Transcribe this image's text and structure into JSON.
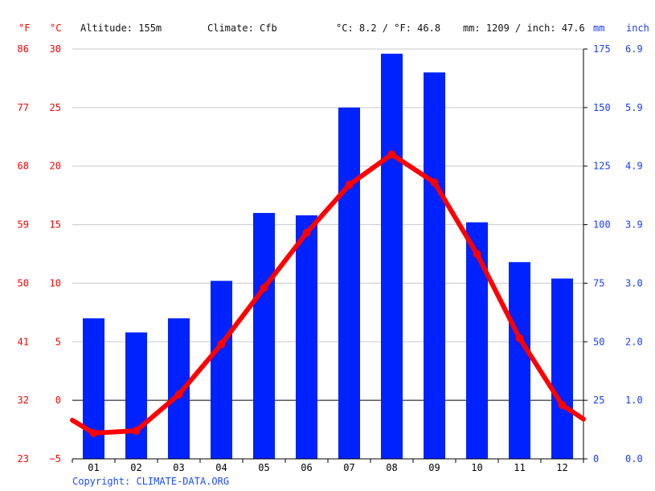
{
  "header": {
    "altitude": "Altitude: 155m",
    "climate": "Climate: Cfb",
    "avg_temp": "°C: 8.2 / °F: 46.8",
    "precip": "mm: 1209 / inch: 47.6",
    "unit_f": "°F",
    "unit_c": "°C",
    "unit_mm": "mm",
    "unit_inch": "inch"
  },
  "copyright": "Copyright: CLIMATE-DATA.ORG",
  "colors": {
    "temperature": "#ff0000",
    "precipitation": "#0022ff",
    "axis_blue": "#1a3cff",
    "grid": "#c8c8c8"
  },
  "chart_data": {
    "type": "bar",
    "categories": [
      "01",
      "02",
      "03",
      "04",
      "05",
      "06",
      "07",
      "08",
      "09",
      "10",
      "11",
      "12"
    ],
    "series": [
      {
        "values": [
          60,
          54,
          60,
          76,
          105,
          104,
          150,
          173,
          165,
          101,
          84,
          77
        ],
        "axis": "right-mm",
        "kind": "bar"
      },
      {
        "values": [
          -2.8,
          -2.6,
          0.5,
          4.8,
          9.6,
          14.3,
          18.4,
          21.0,
          18.6,
          12.5,
          5.3,
          -0.4
        ],
        "axis": "left-celsius",
        "kind": "line"
      }
    ],
    "line_ends": {
      "start": -1.7,
      "end": -1.6
    },
    "y_left_celsius": {
      "ticks": [
        30,
        25,
        20,
        15,
        10,
        5,
        0,
        -5
      ],
      "labels": [
        "30",
        "25",
        "20",
        "15",
        "10",
        "5",
        "0",
        "−5"
      ],
      "ylim": [
        -5,
        30
      ]
    },
    "y_left_fahrenheit": {
      "labels": [
        "86",
        "77",
        "68",
        "59",
        "50",
        "41",
        "32",
        "23"
      ]
    },
    "y_right_mm": {
      "ticks": [
        175,
        150,
        125,
        100,
        75,
        50,
        25,
        0
      ],
      "labels": [
        "175",
        "150",
        "125",
        "100",
        "75",
        "50",
        "25",
        "0"
      ],
      "ylim": [
        0,
        175
      ]
    },
    "y_right_inch": {
      "labels": [
        "6.9",
        "5.9",
        "4.9",
        "3.9",
        "3.0",
        "2.0",
        "1.0",
        "0.0"
      ]
    },
    "grid": true
  }
}
